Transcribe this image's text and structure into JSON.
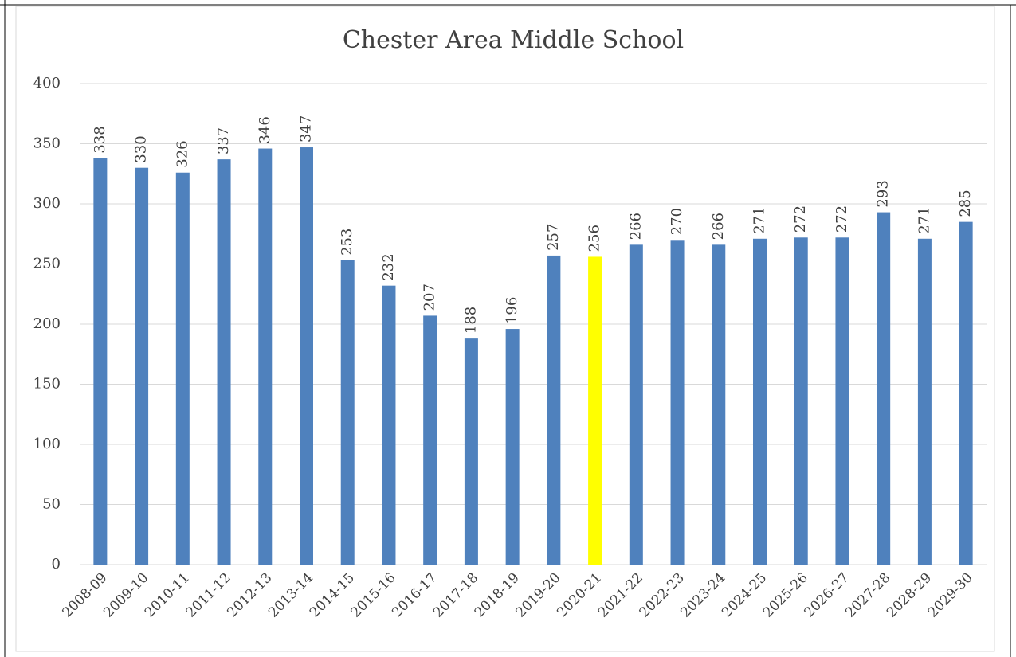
{
  "chart_data": {
    "type": "bar",
    "title": "Chester Area Middle School",
    "categories": [
      "2008-09",
      "2009-10",
      "2010-11",
      "2011-12",
      "2012-13",
      "2013-14",
      "2014-15",
      "2015-16",
      "2016-17",
      "2017-18",
      "2018-19",
      "2019-20",
      "2020-21",
      "2021-22",
      "2022-23",
      "2023-24",
      "2024-25",
      "2025-26",
      "2026-27",
      "2027-28",
      "2028-29",
      "2029-30"
    ],
    "values": [
      338,
      330,
      326,
      337,
      346,
      347,
      253,
      232,
      207,
      188,
      196,
      257,
      256,
      266,
      270,
      266,
      271,
      272,
      272,
      293,
      271,
      285
    ],
    "colors": [
      "#4f81bd",
      "#4f81bd",
      "#4f81bd",
      "#4f81bd",
      "#4f81bd",
      "#4f81bd",
      "#4f81bd",
      "#4f81bd",
      "#4f81bd",
      "#4f81bd",
      "#4f81bd",
      "#4f81bd",
      "#ffff00",
      "#4f81bd",
      "#4f81bd",
      "#4f81bd",
      "#4f81bd",
      "#4f81bd",
      "#4f81bd",
      "#4f81bd",
      "#4f81bd",
      "#4f81bd"
    ],
    "ylim": [
      0,
      400
    ],
    "yticks": [
      0,
      50,
      100,
      150,
      200,
      250,
      300,
      350,
      400
    ],
    "grid": true
  }
}
